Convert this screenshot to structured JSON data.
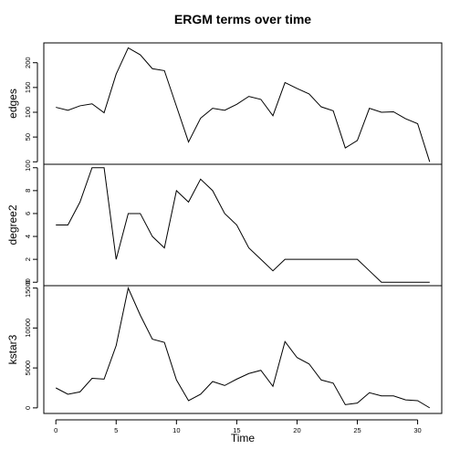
{
  "chart_data": {
    "type": "line",
    "title": "ERGM terms over time",
    "xlabel": "Time",
    "x": [
      0,
      1,
      2,
      3,
      4,
      5,
      6,
      7,
      8,
      9,
      10,
      11,
      12,
      13,
      14,
      15,
      16,
      17,
      18,
      19,
      20,
      21,
      22,
      23,
      24,
      25,
      26,
      27,
      28,
      29,
      30,
      31
    ],
    "xlim": [
      -1,
      32
    ],
    "xticks": [
      0,
      5,
      10,
      15,
      20,
      25,
      30
    ],
    "series": [
      {
        "name": "edges",
        "ylim": [
          -5,
          240
        ],
        "yticks": [
          0,
          50,
          100,
          150,
          200
        ],
        "values": [
          110,
          104,
          113,
          117,
          99,
          177,
          230,
          216,
          188,
          184,
          112,
          40,
          88,
          108,
          104,
          116,
          132,
          126,
          93,
          160,
          148,
          137,
          111,
          103,
          28,
          43,
          108,
          100,
          101,
          87,
          77,
          0
        ]
      },
      {
        "name": "degree2",
        "ylim": [
          -0.3,
          10.3
        ],
        "yticks": [
          0,
          2,
          4,
          6,
          8,
          10
        ],
        "values": [
          5,
          5,
          7,
          10,
          10,
          2,
          6,
          6,
          4,
          3,
          8,
          7,
          9,
          8,
          6,
          5,
          3,
          2,
          1,
          2,
          2,
          2,
          2,
          2,
          2,
          2,
          1,
          0,
          0,
          0,
          0,
          0
        ]
      },
      {
        "name": "kstar3",
        "ylim": [
          -700,
          15300
        ],
        "yticks": [
          0,
          5000,
          10000,
          15000
        ],
        "values": [
          2500,
          1700,
          2000,
          3700,
          3600,
          7800,
          15000,
          11600,
          8600,
          8200,
          3500,
          900,
          1700,
          3300,
          2800,
          3600,
          4300,
          4700,
          2700,
          8300,
          6300,
          5500,
          3500,
          3100,
          400,
          600,
          1900,
          1500,
          1500,
          1000,
          900,
          0
        ]
      }
    ],
    "grid": false,
    "legend": "none"
  }
}
